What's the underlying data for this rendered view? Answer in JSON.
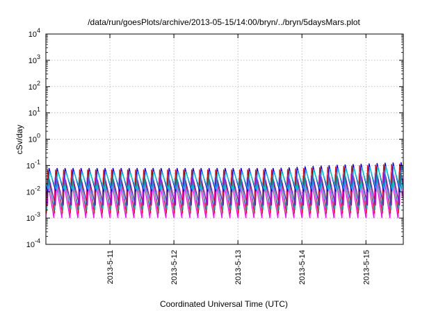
{
  "chart_data": {
    "type": "line",
    "title": "/data/run/goesPlots/archive/2013-05-15/14:00/bryn/../bryn/5daysMars.plot",
    "xlabel": "Coordinated Universal Time (UTC)",
    "ylabel": "cSv/day",
    "y_scale": "log",
    "ylim_exponents": [
      -4,
      4
    ],
    "x_start": "2013-05-10 00:00",
    "x_end": "2013-05-15 14:00",
    "x_ticks": [
      "2013-5-11",
      "2013-5-12",
      "2013-5-13",
      "2013-5-14",
      "2013-5-15"
    ],
    "y_tick_exponents": [
      -4,
      -3,
      -2,
      -1,
      0,
      1,
      2,
      3,
      4
    ],
    "grid": true,
    "oscillation_period_hours": 3,
    "series": [
      {
        "color": "#ff00ff",
        "min": 0.001,
        "max": 0.035
      },
      {
        "color": "#ff0000",
        "min": 0.0015,
        "max": 0.07
      },
      {
        "color": "#00b0b0",
        "min": 0.002,
        "max": 0.03
      },
      {
        "color": "#9000c0",
        "min": 0.003,
        "max": 0.04
      },
      {
        "color": "#0000ff",
        "min": 0.01,
        "max": 0.08
      },
      {
        "color": "#00c8c8",
        "min": 0.012,
        "max": 0.06
      }
    ]
  }
}
